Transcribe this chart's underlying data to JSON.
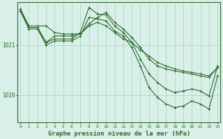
{
  "background_color": "#d8f0e8",
  "grid_color": "#b8d8cc",
  "line_color": "#2d6a2d",
  "xlabel": "Graphe pression niveau de la mer (hPa)",
  "xlabel_fontsize": 6.5,
  "ylabel_ticks": [
    1020,
    1021
  ],
  "xlim": [
    -0.3,
    23.3
  ],
  "ylim": [
    1019.45,
    1021.85
  ],
  "xticks": [
    0,
    1,
    2,
    3,
    4,
    5,
    6,
    7,
    8,
    9,
    10,
    11,
    12,
    13,
    14,
    15,
    16,
    17,
    18,
    19,
    20,
    21,
    22,
    23
  ],
  "lines": [
    {
      "x": [
        0,
        1,
        2,
        3,
        4,
        5,
        6,
        7,
        8,
        9,
        10,
        11,
        12,
        13,
        14,
        15,
        16,
        17,
        18,
        19,
        20,
        21,
        22,
        23
      ],
      "y": [
        1021.72,
        1021.38,
        1021.38,
        1021.38,
        1021.25,
        1021.22,
        1021.22,
        1021.22,
        1021.38,
        1021.45,
        1021.38,
        1021.25,
        1021.12,
        1021.05,
        1020.9,
        1020.78,
        1020.65,
        1020.58,
        1020.52,
        1020.48,
        1020.45,
        1020.42,
        1020.38,
        1020.55
      ]
    },
    {
      "x": [
        0,
        1,
        2,
        3,
        4,
        5,
        6,
        7,
        8,
        9,
        10,
        11,
        12,
        13,
        14,
        15,
        16,
        17,
        18,
        19,
        20,
        21,
        22,
        23
      ],
      "y": [
        1021.68,
        1021.35,
        1021.35,
        1021.05,
        1021.18,
        1021.18,
        1021.18,
        1021.22,
        1021.42,
        1021.55,
        1021.65,
        1021.45,
        1021.32,
        1021.15,
        1020.95,
        1020.72,
        1020.58,
        1020.52,
        1020.48,
        1020.45,
        1020.42,
        1020.38,
        1020.35,
        1020.55
      ]
    },
    {
      "x": [
        0,
        1,
        2,
        3,
        4,
        5,
        6,
        7,
        8,
        9,
        10,
        11,
        12,
        13,
        14,
        15,
        16,
        17,
        18,
        19,
        20,
        21,
        22,
        23
      ],
      "y": [
        1021.72,
        1021.35,
        1021.35,
        1021.05,
        1021.12,
        1021.12,
        1021.12,
        1021.25,
        1021.75,
        1021.62,
        1021.6,
        1021.38,
        1021.25,
        1021.05,
        1020.72,
        1020.42,
        1020.25,
        1020.12,
        1020.05,
        1020.08,
        1020.12,
        1020.08,
        1019.98,
        1020.58
      ]
    },
    {
      "x": [
        0,
        1,
        2,
        3,
        4,
        5,
        6,
        7,
        8,
        9,
        10,
        11,
        12,
        13,
        14,
        15,
        16,
        17,
        18,
        19,
        20,
        21,
        22,
        23
      ],
      "y": [
        1021.68,
        1021.32,
        1021.32,
        1021.0,
        1021.08,
        1021.08,
        1021.08,
        1021.18,
        1021.55,
        1021.52,
        1021.48,
        1021.28,
        1021.18,
        1020.95,
        1020.58,
        1020.15,
        1019.95,
        1019.82,
        1019.75,
        1019.78,
        1019.88,
        1019.82,
        1019.72,
        1020.38
      ]
    }
  ]
}
